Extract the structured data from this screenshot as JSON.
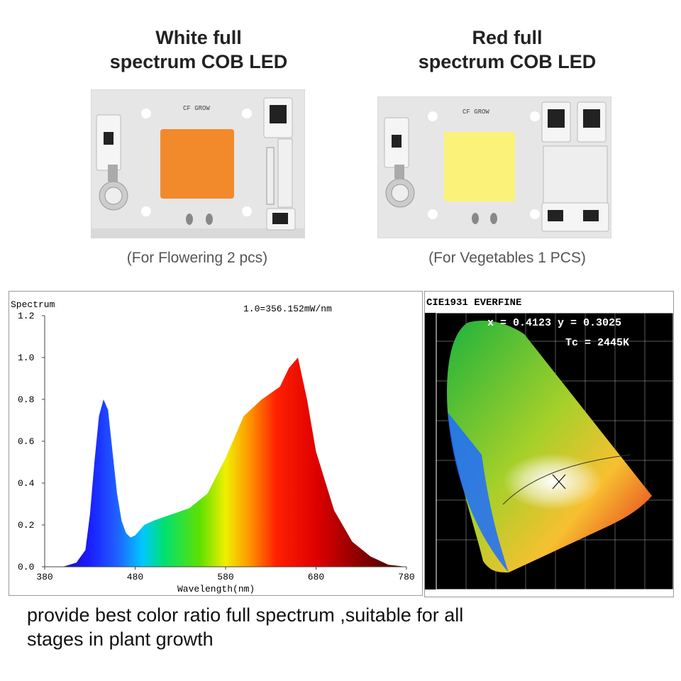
{
  "products": [
    {
      "title_line1": "White full",
      "title_line2": "spectrum COB LED",
      "board_label": "CF GROW",
      "caption": "(For Flowering 2 pcs)",
      "emitter_color": "#f28a2c"
    },
    {
      "title_line1": "Red full",
      "title_line2": "spectrum COB LED",
      "board_label": "CF GROW",
      "caption": "(For Vegetables 1 PCS)",
      "emitter_color": "#fbf27a"
    }
  ],
  "chart_data": {
    "type": "area",
    "title": "Spectrum",
    "annotation": "1.0=356.152mW/nm",
    "xlabel": "Wavelength(nm)",
    "ylabel": "Spectrum",
    "xlim": [
      380,
      780
    ],
    "ylim": [
      0,
      1.2
    ],
    "x_ticks": [
      "380",
      "480",
      "580",
      "680",
      "780"
    ],
    "y_ticks": [
      "0.0",
      "0.2",
      "0.4",
      "0.6",
      "0.8",
      "1.0",
      "1.2"
    ],
    "x": [
      380,
      400,
      415,
      425,
      430,
      435,
      440,
      445,
      450,
      455,
      460,
      465,
      470,
      475,
      480,
      490,
      500,
      520,
      540,
      560,
      580,
      600,
      620,
      640,
      650,
      660,
      670,
      680,
      700,
      720,
      740,
      760,
      780
    ],
    "y": [
      0.0,
      0.0,
      0.02,
      0.08,
      0.25,
      0.5,
      0.72,
      0.8,
      0.75,
      0.55,
      0.35,
      0.22,
      0.16,
      0.14,
      0.15,
      0.2,
      0.22,
      0.25,
      0.28,
      0.35,
      0.52,
      0.72,
      0.8,
      0.86,
      0.95,
      1.0,
      0.8,
      0.55,
      0.27,
      0.12,
      0.05,
      0.01,
      0.0
    ]
  },
  "cie": {
    "title": "CIE1931 EVERFINE",
    "xy_readout": "x = 0.4123 y = 0.3025",
    "tc_readout": "Tc = 2445K"
  },
  "footer": {
    "line1": "provide best color ratio full spectrum ,suitable for all",
    "line2": "stages in plant growth"
  }
}
